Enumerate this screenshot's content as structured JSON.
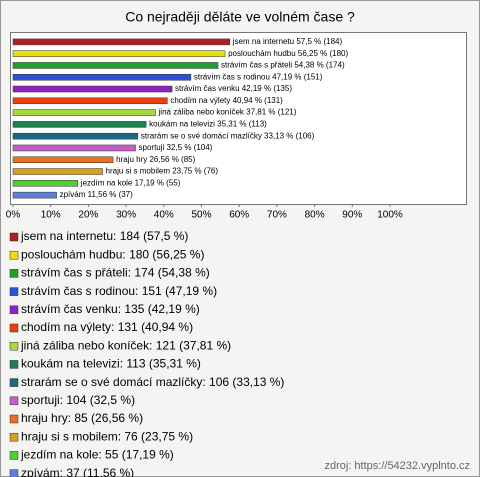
{
  "chart_data": {
    "type": "bar",
    "orientation": "horizontal",
    "title": "Co nejraději děláte ve volném čase ?",
    "categories": [
      "jsem na internetu",
      "poslouchám hudbu",
      "strávím čas s přáteli",
      "strávím čas s rodinou",
      "strávím čas venku",
      "chodím na výlety",
      "jiná záliba nebo koníček",
      "koukám na televizi",
      "strarám se o své domácí mazlíčky",
      "sportuji",
      "hraju hry",
      "hraju si s mobilem",
      "jezdím na kole",
      "zpívám"
    ],
    "values": [
      57.5,
      56.25,
      54.38,
      47.19,
      42.19,
      40.94,
      37.81,
      35.31,
      33.13,
      32.5,
      26.56,
      23.75,
      17.19,
      11.56
    ],
    "value_labels": [
      "jsem na internetu 57,5 % (184)",
      "poslouchám hudbu 56,25 % (180)",
      "strávím čas s přáteli 54,38 % (174)",
      "strávím čas s rodinou 47,19 % (151)",
      "strávím čas venku 42,19 % (135)",
      "chodím na výlety 40,94 % (131)",
      "jiná záliba nebo koníček 37,81 % (121)",
      "koukám na televizi 35,31 % (113)",
      "strarám se o své domácí mazlíčky 33,13 % (106)",
      "sportuji 32,5 % (104)",
      "hraju hry 26,56 % (85)",
      "hraju si s mobilem 23,75 % (76)",
      "jezdím na kole 17,19 % (55)",
      "zpívám 11,56 % (37)"
    ],
    "legend_labels": [
      "jsem na internetu: 184 (57,5 %)",
      "poslouchám hudbu: 180 (56,25 %)",
      "strávím čas s přáteli: 174 (54,38 %)",
      "strávím čas s rodinou: 151 (47,19 %)",
      "strávím čas venku: 135 (42,19 %)",
      "chodím na výlety: 131 (40,94 %)",
      "jiná záliba nebo koníček: 121 (37,81 %)",
      "koukám na televizi: 113 (35,31 %)",
      "strarám se o své domácí mazlíčky: 106 (33,13 %)",
      "sportuji: 104 (32,5 %)",
      "hraju hry: 85 (26,56 %)",
      "hraju si s mobilem: 76 (23,75 %)",
      "jezdím na kole: 55 (17,19 %)",
      "zpívám: 37 (11,56 %)"
    ],
    "colors": [
      "#b02020",
      "#e8e010",
      "#20a030",
      "#3050d8",
      "#9020c0",
      "#e84010",
      "#a8d840",
      "#208050",
      "#206880",
      "#c060c8",
      "#e87020",
      "#d8a020",
      "#50d030",
      "#6080d8"
    ],
    "xlim": [
      0,
      100
    ],
    "xticks": [
      {
        "value": 0,
        "label": "0%"
      },
      {
        "value": 10,
        "label": "10%"
      },
      {
        "value": 20,
        "label": "20%"
      },
      {
        "value": 30,
        "label": "30%"
      },
      {
        "value": 40,
        "label": "40%"
      },
      {
        "value": 50,
        "label": "50%"
      },
      {
        "value": 60,
        "label": "60%"
      },
      {
        "value": 70,
        "label": "70%"
      },
      {
        "value": 80,
        "label": "80%"
      },
      {
        "value": 90,
        "label": "90%"
      },
      {
        "value": 100,
        "label": "100%"
      }
    ],
    "grid": false,
    "source": "zdroj: https://54232.vyplnto.cz"
  }
}
